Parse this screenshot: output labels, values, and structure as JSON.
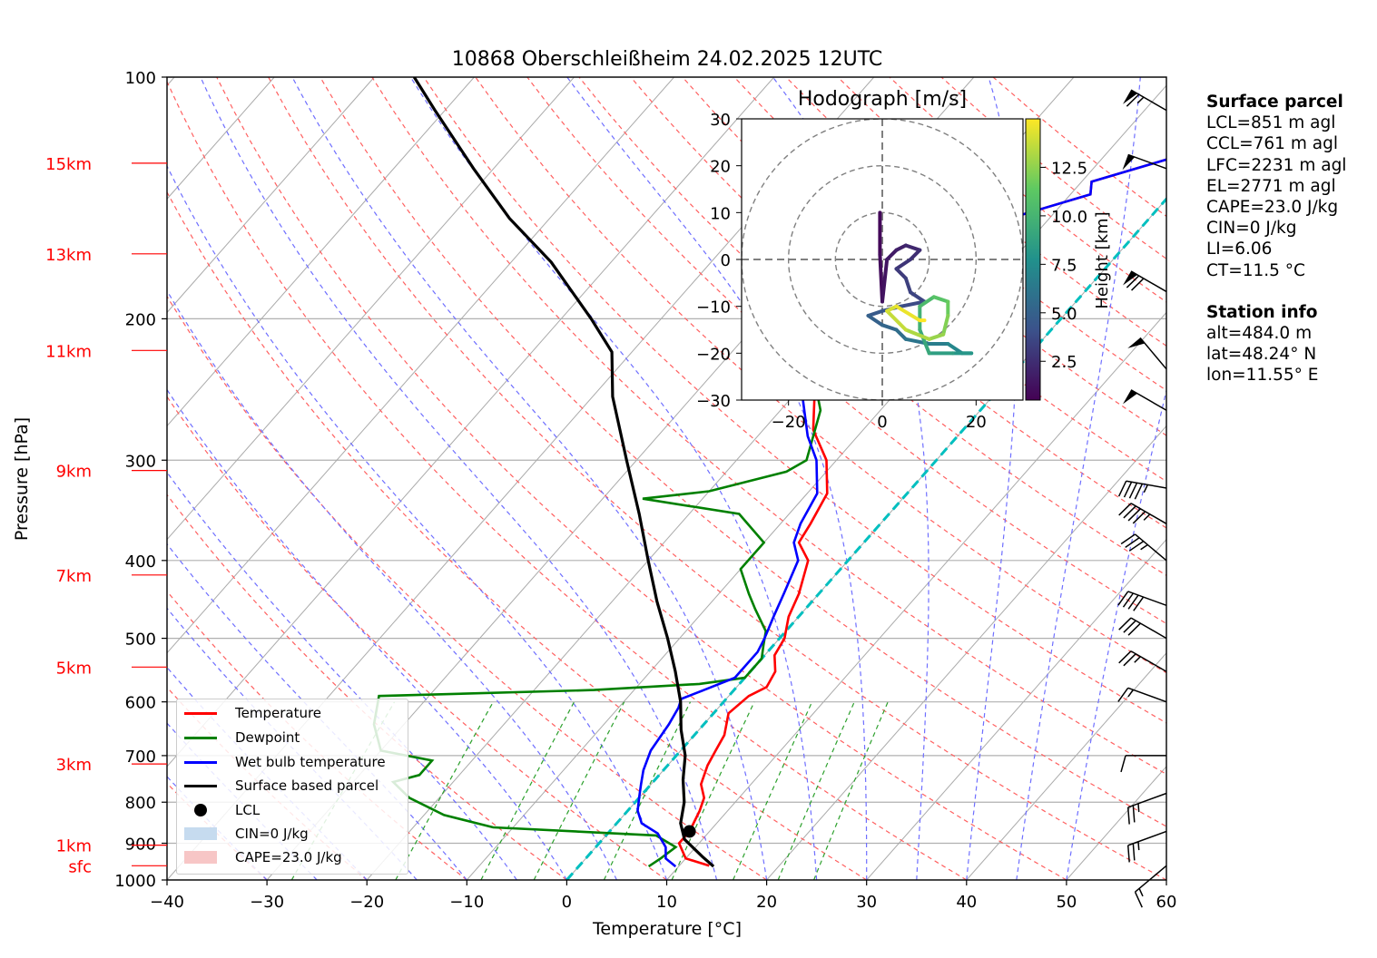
{
  "chart_data": {
    "type": "skewt",
    "title": "10868 Oberschleißheim 24.02.2025 12UTC",
    "xlabel": "Temperature [°C]",
    "ylabel": "Pressure [hPa]",
    "xlim": [
      -40,
      60
    ],
    "ylim": [
      1000,
      100
    ],
    "x_ticks": [
      -40,
      -30,
      -20,
      -10,
      0,
      10,
      20,
      30,
      40,
      50,
      60
    ],
    "y_ticks": [
      100,
      200,
      300,
      400,
      500,
      600,
      700,
      800,
      900,
      1000
    ],
    "height_labels": [
      {
        "label": "15km",
        "p": 128
      },
      {
        "label": "13km",
        "p": 166
      },
      {
        "label": "11km",
        "p": 219
      },
      {
        "label": "9km",
        "p": 309
      },
      {
        "label": "7km",
        "p": 417
      },
      {
        "label": "5km",
        "p": 543
      },
      {
        "label": "3km",
        "p": 717
      },
      {
        "label": "1km",
        "p": 905
      },
      {
        "label": "sfc",
        "p": 960
      }
    ],
    "series": [
      {
        "name": "Temperature",
        "color": "#ff0000",
        "points": [
          [
            13,
            960
          ],
          [
            10,
            940
          ],
          [
            8,
            900
          ],
          [
            8,
            870
          ],
          [
            7.2,
            820
          ],
          [
            6.5,
            790
          ],
          [
            5,
            760
          ],
          [
            4,
            720
          ],
          [
            3.5,
            690
          ],
          [
            3,
            660
          ],
          [
            1.5,
            620
          ],
          [
            2,
            590
          ],
          [
            3,
            575
          ],
          [
            2.5,
            550
          ],
          [
            1,
            525
          ],
          [
            0.5,
            500
          ],
          [
            -1,
            470
          ],
          [
            -2,
            440
          ],
          [
            -4,
            400
          ],
          [
            -6.5,
            380
          ],
          [
            -7,
            360
          ],
          [
            -8,
            330
          ],
          [
            -11,
            300
          ],
          [
            -15,
            275
          ],
          [
            -19,
            240
          ],
          [
            -25,
            205
          ],
          [
            -24,
            190
          ],
          [
            -23,
            180
          ],
          [
            -16,
            170
          ],
          [
            -15,
            160
          ],
          [
            -14,
            150
          ],
          [
            -8,
            140
          ],
          [
            -9,
            135
          ],
          [
            -3,
            126
          ],
          [
            -2,
            122
          ]
        ]
      },
      {
        "name": "Dewpoint",
        "color": "#008000",
        "points": [
          [
            7,
            962
          ],
          [
            7.5,
            940
          ],
          [
            8,
            910
          ],
          [
            5,
            880
          ],
          [
            -12,
            860
          ],
          [
            -18,
            830
          ],
          [
            -23,
            790
          ],
          [
            -26,
            755
          ],
          [
            -24,
            740
          ],
          [
            -24,
            710
          ],
          [
            -30,
            690
          ],
          [
            -33,
            640
          ],
          [
            -35,
            590
          ],
          [
            -14,
            580
          ],
          [
            -4,
            570
          ],
          [
            0,
            560
          ],
          [
            0,
            530
          ],
          [
            -1,
            510
          ],
          [
            -2,
            490
          ],
          [
            -5,
            460
          ],
          [
            -7,
            440
          ],
          [
            -10,
            410
          ],
          [
            -10,
            380
          ],
          [
            -15,
            350
          ],
          [
            -26,
            335
          ],
          [
            -20,
            328
          ],
          [
            -14,
            310
          ],
          [
            -13,
            300
          ],
          [
            -16,
            260
          ],
          [
            -19,
            240
          ],
          [
            -24,
            210
          ],
          [
            -26,
            200
          ],
          [
            -22,
            190
          ],
          [
            -25,
            180
          ],
          [
            -29,
            175
          ],
          [
            -32,
            165
          ],
          [
            -31,
            155
          ],
          [
            -33,
            140
          ],
          [
            -32,
            130
          ],
          [
            -31,
            124
          ]
        ]
      },
      {
        "name": "Wet bulb temperature",
        "color": "#0000ff",
        "points": [
          [
            9.7,
            962
          ],
          [
            8,
            940
          ],
          [
            7,
            910
          ],
          [
            5,
            875
          ],
          [
            2.5,
            850
          ],
          [
            1,
            820
          ],
          [
            0,
            790
          ],
          [
            -1,
            760
          ],
          [
            -2,
            730
          ],
          [
            -3,
            690
          ],
          [
            -3.5,
            640
          ],
          [
            -4,
            610
          ],
          [
            -4.5,
            595
          ],
          [
            -3,
            580
          ],
          [
            -1,
            560
          ],
          [
            -1,
            520
          ],
          [
            -1.5,
            500
          ],
          [
            -2.5,
            470
          ],
          [
            -3.5,
            440
          ],
          [
            -5,
            400
          ],
          [
            -7,
            380
          ],
          [
            -8,
            360
          ],
          [
            -9,
            330
          ],
          [
            -12,
            300
          ],
          [
            -15,
            280
          ],
          [
            -19,
            250
          ],
          [
            -24,
            215
          ],
          [
            -26,
            205
          ],
          [
            -25,
            190
          ],
          [
            -24,
            180
          ],
          [
            -16,
            170
          ],
          [
            -15,
            160
          ],
          [
            -14,
            150
          ],
          [
            -8,
            140
          ],
          [
            -9,
            135
          ],
          [
            -3,
            126
          ],
          [
            -2,
            123
          ]
        ]
      },
      {
        "name": "Surface based parcel",
        "color": "#000000",
        "points": [
          [
            13.5,
            962
          ],
          [
            11.5,
            935
          ],
          [
            8.2,
            890
          ],
          [
            6.4,
            850
          ],
          [
            4.9,
            800
          ],
          [
            2.8,
            750
          ],
          [
            0.9,
            700
          ],
          [
            -1.8,
            650
          ],
          [
            -4.3,
            600
          ],
          [
            -7.5,
            550
          ],
          [
            -11.2,
            500
          ],
          [
            -15.5,
            450
          ],
          [
            -20,
            400
          ],
          [
            -25,
            350
          ],
          [
            -31,
            300
          ],
          [
            -38,
            250
          ],
          [
            -42,
            220
          ],
          [
            -47,
            200
          ],
          [
            -56,
            170
          ],
          [
            -64,
            150
          ],
          [
            -72,
            130
          ],
          [
            -81,
            110
          ],
          [
            -86,
            100
          ]
        ]
      }
    ],
    "lcl": {
      "name": "LCL",
      "t": 8,
      "p": 870
    },
    "cin_label": "CIN=0 J/kg",
    "cape_label": "CAPE=23.0 J/kg",
    "wind_barbs": [
      {
        "p": 110,
        "dir": 300,
        "kt": 65
      },
      {
        "p": 130,
        "dir": 290,
        "kt": 50
      },
      {
        "p": 185,
        "dir": 300,
        "kt": 70
      },
      {
        "p": 231,
        "dir": 320,
        "kt": 50
      },
      {
        "p": 260,
        "dir": 300,
        "kt": 50
      },
      {
        "p": 325,
        "dir": 280,
        "kt": 45
      },
      {
        "p": 360,
        "dir": 300,
        "kt": 45
      },
      {
        "p": 400,
        "dir": 310,
        "kt": 35
      },
      {
        "p": 455,
        "dir": 290,
        "kt": 40
      },
      {
        "p": 500,
        "dir": 300,
        "kt": 30
      },
      {
        "p": 550,
        "dir": 300,
        "kt": 25
      },
      {
        "p": 600,
        "dir": 290,
        "kt": 15
      },
      {
        "p": 700,
        "dir": 270,
        "kt": 10
      },
      {
        "p": 780,
        "dir": 250,
        "kt": 25
      },
      {
        "p": 870,
        "dir": 250,
        "kt": 25
      },
      {
        "p": 960,
        "dir": 230,
        "kt": 15
      }
    ],
    "legend": [
      "Temperature",
      "Dewpoint",
      "Wet bulb temperature",
      "Surface based parcel",
      "LCL",
      "CIN=0 J/kg",
      "CAPE=23.0 J/kg"
    ],
    "hodograph": {
      "title": "Hodograph [m/s]",
      "colorbar_label": "Height [km]",
      "xlim": [
        -30,
        30
      ],
      "ylim": [
        -30,
        30
      ],
      "x_ticks": [
        -20,
        0,
        20
      ],
      "y_ticks": [
        -30,
        -20,
        -10,
        0,
        10,
        20,
        30
      ],
      "colorbar_ticks": [
        2.5,
        5.0,
        7.5,
        10.0,
        12.5
      ],
      "colorbar_range": [
        0.5,
        15
      ],
      "rings": [
        10,
        20,
        30
      ],
      "points": [
        [
          -0.5,
          10,
          0.5
        ],
        [
          -0.5,
          1,
          0.8
        ],
        [
          0,
          -9,
          1
        ],
        [
          1,
          0,
          1.3
        ],
        [
          3,
          2,
          1.6
        ],
        [
          5,
          3,
          1.9
        ],
        [
          8,
          2,
          2.2
        ],
        [
          6,
          0,
          2.5
        ],
        [
          3,
          -2,
          2.8
        ],
        [
          5,
          -4,
          3.1
        ],
        [
          6,
          -7,
          3.3
        ],
        [
          9,
          -9,
          3.5
        ],
        [
          4,
          -10,
          3.8
        ],
        [
          0,
          -11,
          4.2
        ],
        [
          -3,
          -12,
          4.6
        ],
        [
          0,
          -14,
          5
        ],
        [
          3,
          -15,
          5.3
        ],
        [
          5,
          -17,
          5.7
        ],
        [
          10,
          -18,
          6.1
        ],
        [
          14,
          -18,
          6.6
        ],
        [
          17,
          -20,
          7.2
        ],
        [
          19,
          -20,
          7.6
        ],
        [
          15,
          -20,
          8.1
        ],
        [
          10,
          -20,
          8.6
        ],
        [
          8,
          -15,
          9.2
        ],
        [
          8,
          -10,
          9.8
        ],
        [
          11,
          -8,
          10.4
        ],
        [
          14,
          -9,
          11
        ],
        [
          14,
          -12,
          11.6
        ],
        [
          13,
          -16,
          12.2
        ],
        [
          10,
          -17,
          12.7
        ],
        [
          5,
          -15,
          13.2
        ],
        [
          1,
          -11,
          13.7
        ],
        [
          3,
          -10,
          14.1
        ],
        [
          8,
          -13,
          14.6
        ],
        [
          9,
          -13,
          15
        ]
      ]
    }
  },
  "info_panel": {
    "surface_title": "Surface parcel",
    "surface_lines": [
      "LCL=851 m agl",
      "CCL=761 m agl",
      "LFC=2231 m agl",
      "EL=2771 m agl",
      "CAPE=23.0 J/kg",
      "CIN=0 J/kg",
      "LI=6.06",
      "CT=11.5 °C"
    ],
    "station_title": "Station info",
    "station_lines": [
      "alt=484.0 m",
      "lat=48.24° N",
      "lon=11.55° E"
    ]
  }
}
